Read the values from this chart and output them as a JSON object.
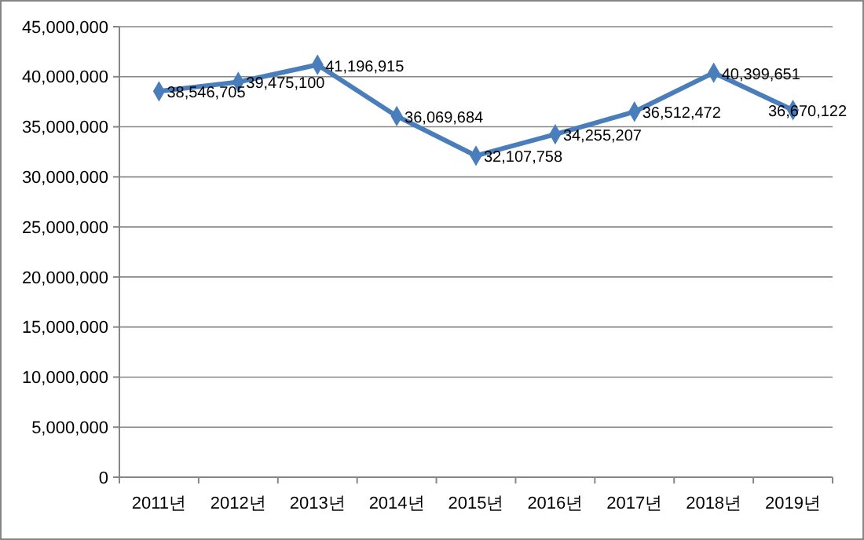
{
  "chart_data": {
    "type": "line",
    "categories": [
      "2011년",
      "2012년",
      "2013년",
      "2014년",
      "2015년",
      "2016년",
      "2017년",
      "2018년",
      "2019년"
    ],
    "series": [
      {
        "color": "#4a7ebb",
        "values": [
          38546705,
          39475100,
          41196915,
          36069684,
          32107758,
          34255207,
          36512472,
          40399651,
          36670122
        ],
        "value_labels": [
          "38,546,705",
          "39,475,100",
          "41,196,915",
          "36,069,684",
          "32,107,758",
          "34,255,207",
          "36,512,472",
          "40,399,651",
          "36,670,122"
        ]
      }
    ],
    "ylim": [
      0,
      45000000
    ],
    "yticks": [
      {
        "value": 0,
        "label": "0"
      },
      {
        "value": 5000000,
        "label": "5,000,000"
      },
      {
        "value": 10000000,
        "label": "10,000,000"
      },
      {
        "value": 15000000,
        "label": "15,000,000"
      },
      {
        "value": 20000000,
        "label": "20,000,000"
      },
      {
        "value": 25000000,
        "label": "25,000,000"
      },
      {
        "value": 30000000,
        "label": "30,000,000"
      },
      {
        "value": 35000000,
        "label": "35,000,000"
      },
      {
        "value": 40000000,
        "label": "40,000,000"
      },
      {
        "value": 45000000,
        "label": "45,000,000"
      }
    ],
    "grid": "y",
    "marker": "diamond",
    "line_style": "solid"
  }
}
